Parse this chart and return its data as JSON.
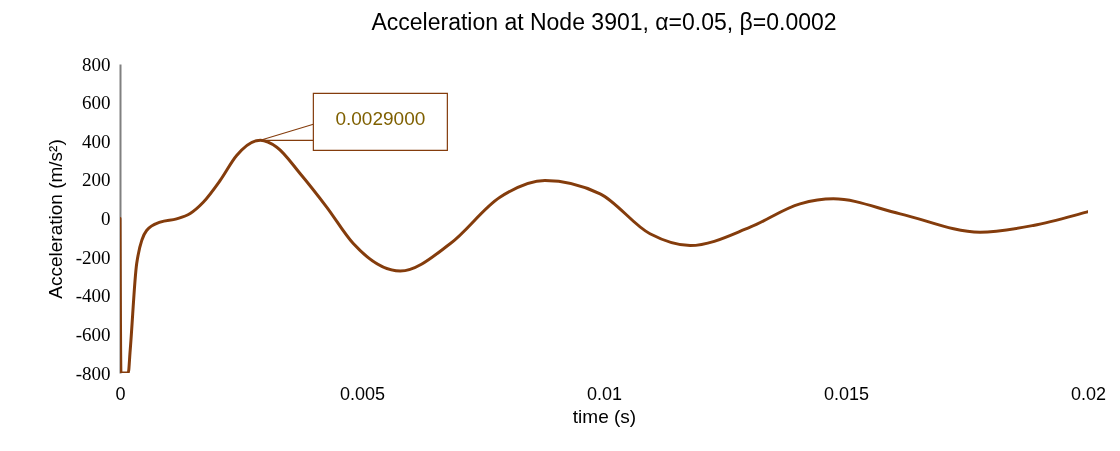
{
  "chart_data": {
    "type": "line",
    "title": "Acceleration at Node 3901, α=0.05, β=0.0002",
    "xlabel": "time (s)",
    "ylabel": "Acceleration (m/s²)",
    "x": [
      0,
      2e-05,
      0.00017,
      0.00021,
      0.000345,
      0.00055,
      0.00083,
      0.00117,
      0.00145,
      0.00172,
      0.00207,
      0.00241,
      0.00282,
      0.0029,
      0.00324,
      0.00372,
      0.00427,
      0.00482,
      0.00579,
      0.00682,
      0.00785,
      0.00878,
      0.00992,
      0.01095,
      0.01178,
      0.01302,
      0.01405,
      0.01474,
      0.01612,
      0.01777,
      0.01887,
      0.01997,
      0.02
    ],
    "series": [
      {
        "color": "#843c0c",
        "values": [
          0,
          -800,
          -800,
          -684,
          -233,
          -62,
          -19,
          -2,
          26,
          84,
          197,
          326,
          403,
          405,
          369,
          233,
          59,
          -130,
          -272,
          -131,
          110,
          197,
          128,
          -79,
          -140,
          -45,
          76,
          102,
          24,
          -71,
          -36,
          33,
          35
        ]
      }
    ],
    "xlim": [
      0,
      0.02
    ],
    "xticks": [
      0,
      0.005,
      0.01,
      0.015,
      0.02
    ],
    "ylim": [
      -800,
      800
    ],
    "yticks": [
      -800,
      -600,
      -400,
      -200,
      0,
      200,
      400,
      600,
      800
    ],
    "grid": false,
    "marker": "none",
    "line_style": "solid",
    "annotations": [
      {
        "text": "0.0029000",
        "x": 0.0029,
        "y": 405
      }
    ]
  }
}
